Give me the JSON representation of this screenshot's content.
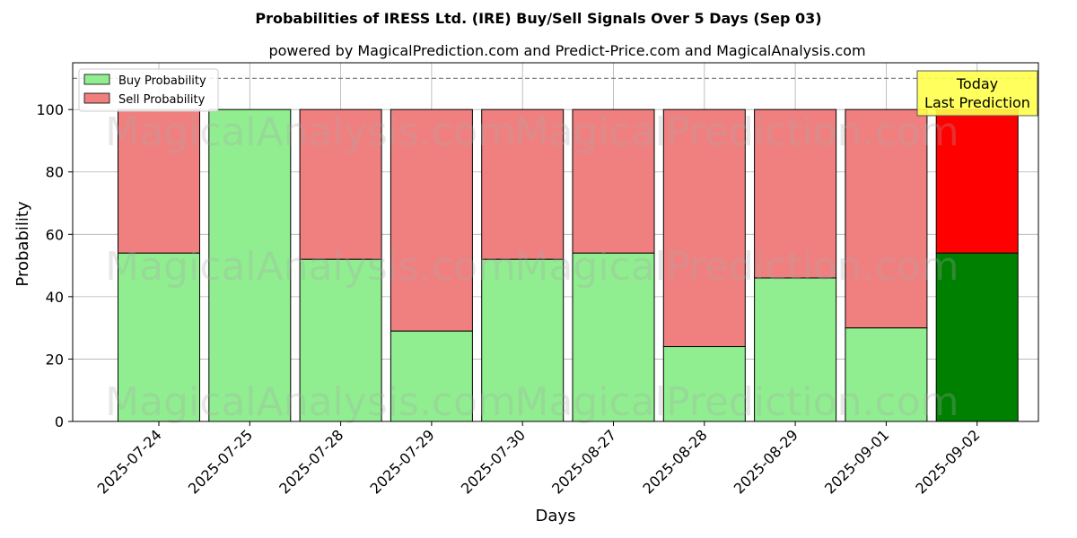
{
  "chart_data": {
    "type": "bar",
    "title": "Probabilities of IRESS Ltd. (IRE) Buy/Sell Signals Over 5 Days (Sep 03)",
    "subtitle": "powered by MagicalPrediction.com and Predict-Price.com and MagicalAnalysis.com",
    "xlabel": "Days",
    "ylabel": "Probability",
    "ylim": [
      0,
      115
    ],
    "yticks": [
      0,
      20,
      40,
      60,
      80,
      100
    ],
    "reference_line": 110,
    "grid": true,
    "stacked": true,
    "legend_position": "top-left",
    "categories": [
      "2025-07-24",
      "2025-07-25",
      "2025-07-28",
      "2025-07-29",
      "2025-07-30",
      "2025-08-27",
      "2025-08-28",
      "2025-08-29",
      "2025-09-01",
      "2025-09-02"
    ],
    "series": [
      {
        "name": "Buy Probability",
        "color": "#90ee90",
        "values": [
          54,
          100,
          52,
          29,
          52,
          54,
          24,
          46,
          30,
          54
        ]
      },
      {
        "name": "Sell Probability",
        "color": "#f08080",
        "values": [
          46,
          0,
          48,
          71,
          48,
          46,
          76,
          54,
          70,
          46
        ]
      }
    ],
    "highlight": {
      "index": 9,
      "buy_color": "#008000",
      "sell_color": "#ff0000"
    },
    "annotation": {
      "line1": "Today",
      "line2": "Last Prediction",
      "color": "#ffff4d"
    },
    "watermarks": [
      "MagicalAnalysis.com",
      "MagicalPrediction.com"
    ]
  }
}
